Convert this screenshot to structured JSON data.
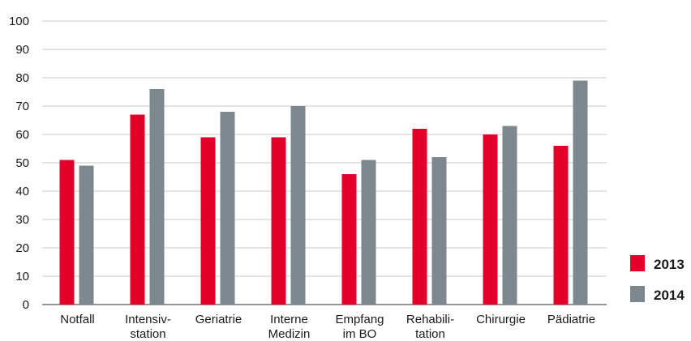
{
  "chart_data": {
    "type": "bar",
    "categories": [
      [
        "Notfall"
      ],
      [
        "Intensiv-",
        "station"
      ],
      [
        "Geriatrie"
      ],
      [
        "Interne",
        "Medizin"
      ],
      [
        "Empfang",
        "im BO"
      ],
      [
        "Rehabili-",
        "tation"
      ],
      [
        "Chirurgie"
      ],
      [
        "Pädiatrie"
      ]
    ],
    "series": [
      {
        "name": "2013",
        "color": "#e2002a",
        "values": [
          51,
          67,
          59,
          59,
          46,
          62,
          60,
          56
        ]
      },
      {
        "name": "2014",
        "color": "#7c878e",
        "values": [
          49,
          76,
          68,
          70,
          51,
          52,
          63,
          79
        ]
      }
    ],
    "title": "",
    "xlabel": "",
    "ylabel": "",
    "ylim": [
      0,
      100
    ],
    "yticks": [
      0,
      10,
      20,
      30,
      40,
      50,
      60,
      70,
      80,
      90,
      100
    ],
    "grid": true,
    "legend_position": "bottom-right"
  }
}
